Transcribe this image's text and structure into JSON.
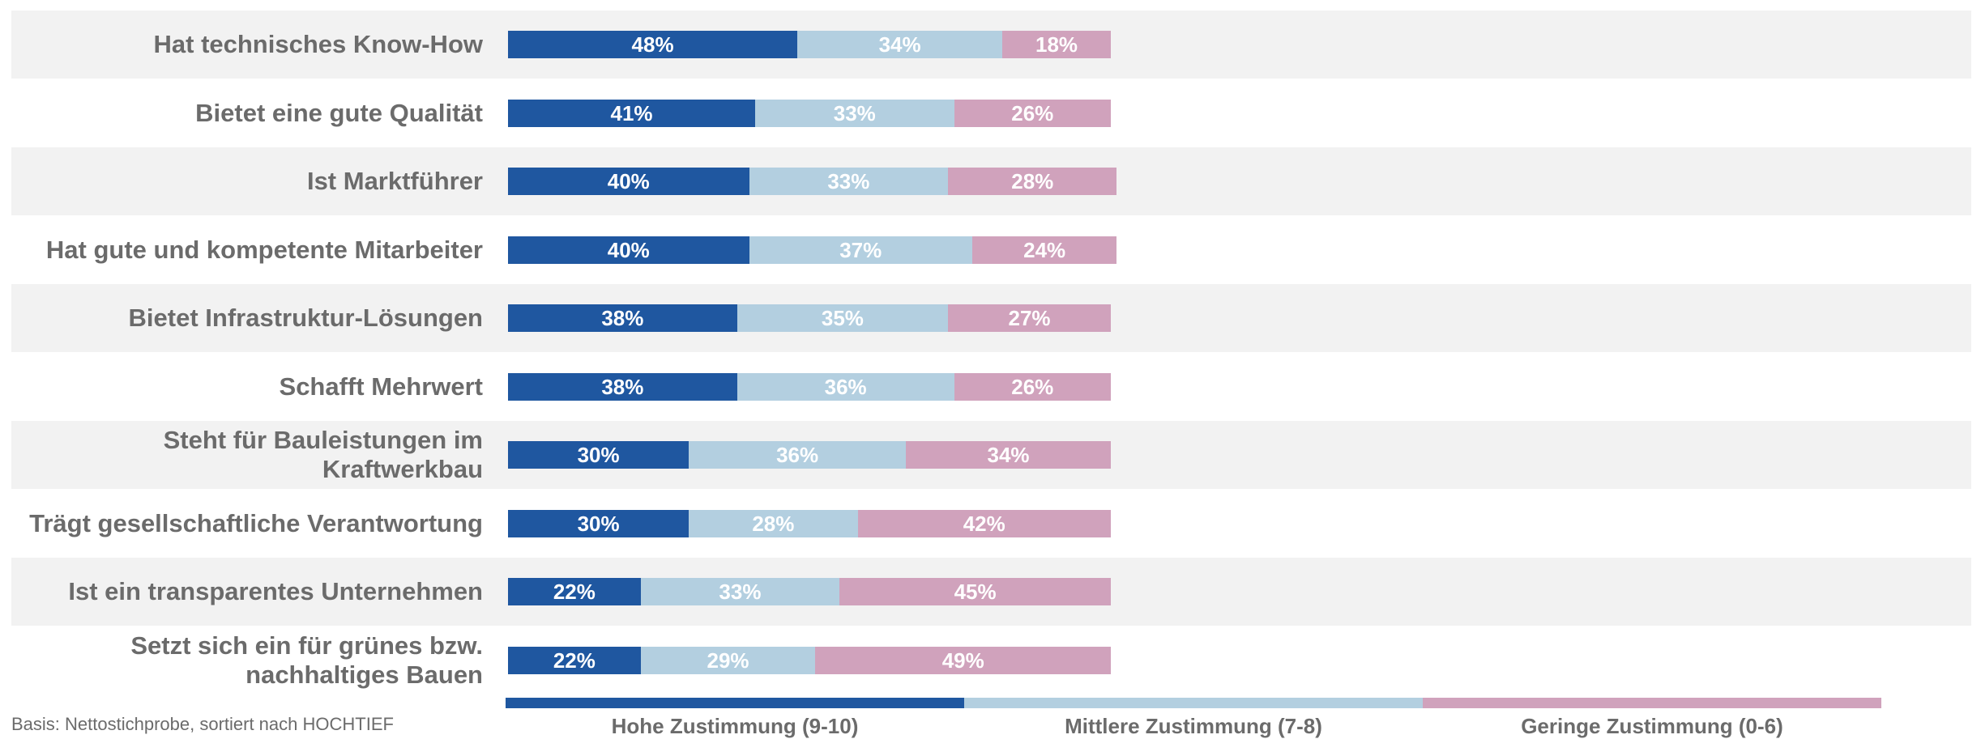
{
  "chart_data": {
    "type": "stacked-bar-horizontal",
    "categories": [
      "Hat technisches Know-How",
      "Bietet eine gute Qualität",
      "Ist Marktführer",
      "Hat gute und kompetente Mitarbeiter",
      "Bietet Infrastruktur-Lösungen",
      "Schafft Mehrwert",
      "Steht für Bauleistungen im\nKraftwerkbau",
      "Trägt gesellschaftliche Verantwortung",
      "Ist ein transparentes Unternehmen",
      "Setzt sich ein für grünes bzw.\nnachhaltiges Bauen"
    ],
    "series": [
      {
        "name": "Hohe Zustimmung (9-10)",
        "color": "#1f57a0",
        "values": [
          48,
          41,
          40,
          40,
          38,
          38,
          30,
          30,
          22,
          22
        ],
        "value_labels": [
          "48%",
          "41%",
          "40%",
          "40%",
          "38%",
          "38%",
          "30%",
          "30%",
          "22%",
          "22%"
        ]
      },
      {
        "name": "Mittlere Zustimmung (7-8)",
        "color": "#b3cfe0",
        "values": [
          34,
          33,
          33,
          37,
          35,
          36,
          36,
          28,
          33,
          29
        ],
        "value_labels": [
          "34%",
          "33%",
          "33%",
          "37%",
          "35%",
          "36%",
          "36%",
          "28%",
          "33%",
          "29%"
        ]
      },
      {
        "name": "Geringe Zustimmung (0-6)",
        "color": "#d0a2bc",
        "values": [
          18,
          26,
          28,
          24,
          27,
          26,
          34,
          42,
          45,
          49
        ],
        "value_labels": [
          "18%",
          "26%",
          "28%",
          "24%",
          "27%",
          "26%",
          "34%",
          "42%",
          "45%",
          "49%"
        ]
      }
    ],
    "footnote": "Basis: Nettostichprobe, sortiert nach HOCHTIEF"
  }
}
